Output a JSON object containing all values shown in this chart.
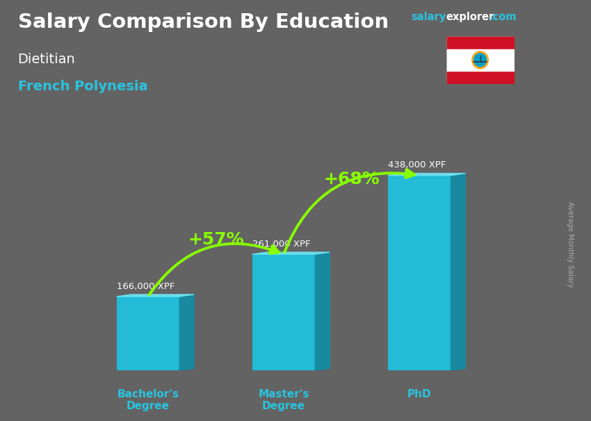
{
  "title_main": "Salary Comparison By Education",
  "subtitle1": "Dietitian",
  "subtitle2": "French Polynesia",
  "ylabel_right": "Average Monthly Salary",
  "categories": [
    "Bachelor's\nDegree",
    "Master's\nDegree",
    "PhD"
  ],
  "values": [
    166000,
    261000,
    438000
  ],
  "value_labels": [
    "166,000 XPF",
    "261,000 XPF",
    "438,000 XPF"
  ],
  "bar_color_main": "#1bc8e8",
  "bar_color_side": "#0e8fa8",
  "bar_color_top": "#6ee8f8",
  "bg_color": "#636363",
  "arrow_color": "#88ff00",
  "pct_labels": [
    "+57%",
    "+68%"
  ],
  "pct_label_color": "#88ff00",
  "title_color": "#ffffff",
  "subtitle1_color": "#ffffff",
  "subtitle2_color": "#29c4e0",
  "value_label_color": "#ffffff",
  "cat_label_color": "#29c4e0",
  "salary_color": "#29c4e0",
  "explorer_color": "#ffffff",
  "dotcom_color": "#29c4e0",
  "right_label_color": "#aaaaaa",
  "ylim": [
    0,
    520000
  ],
  "bar_width": 0.13,
  "x_positions": [
    0.22,
    0.5,
    0.78
  ],
  "x_lim": [
    0.0,
    1.0
  ]
}
